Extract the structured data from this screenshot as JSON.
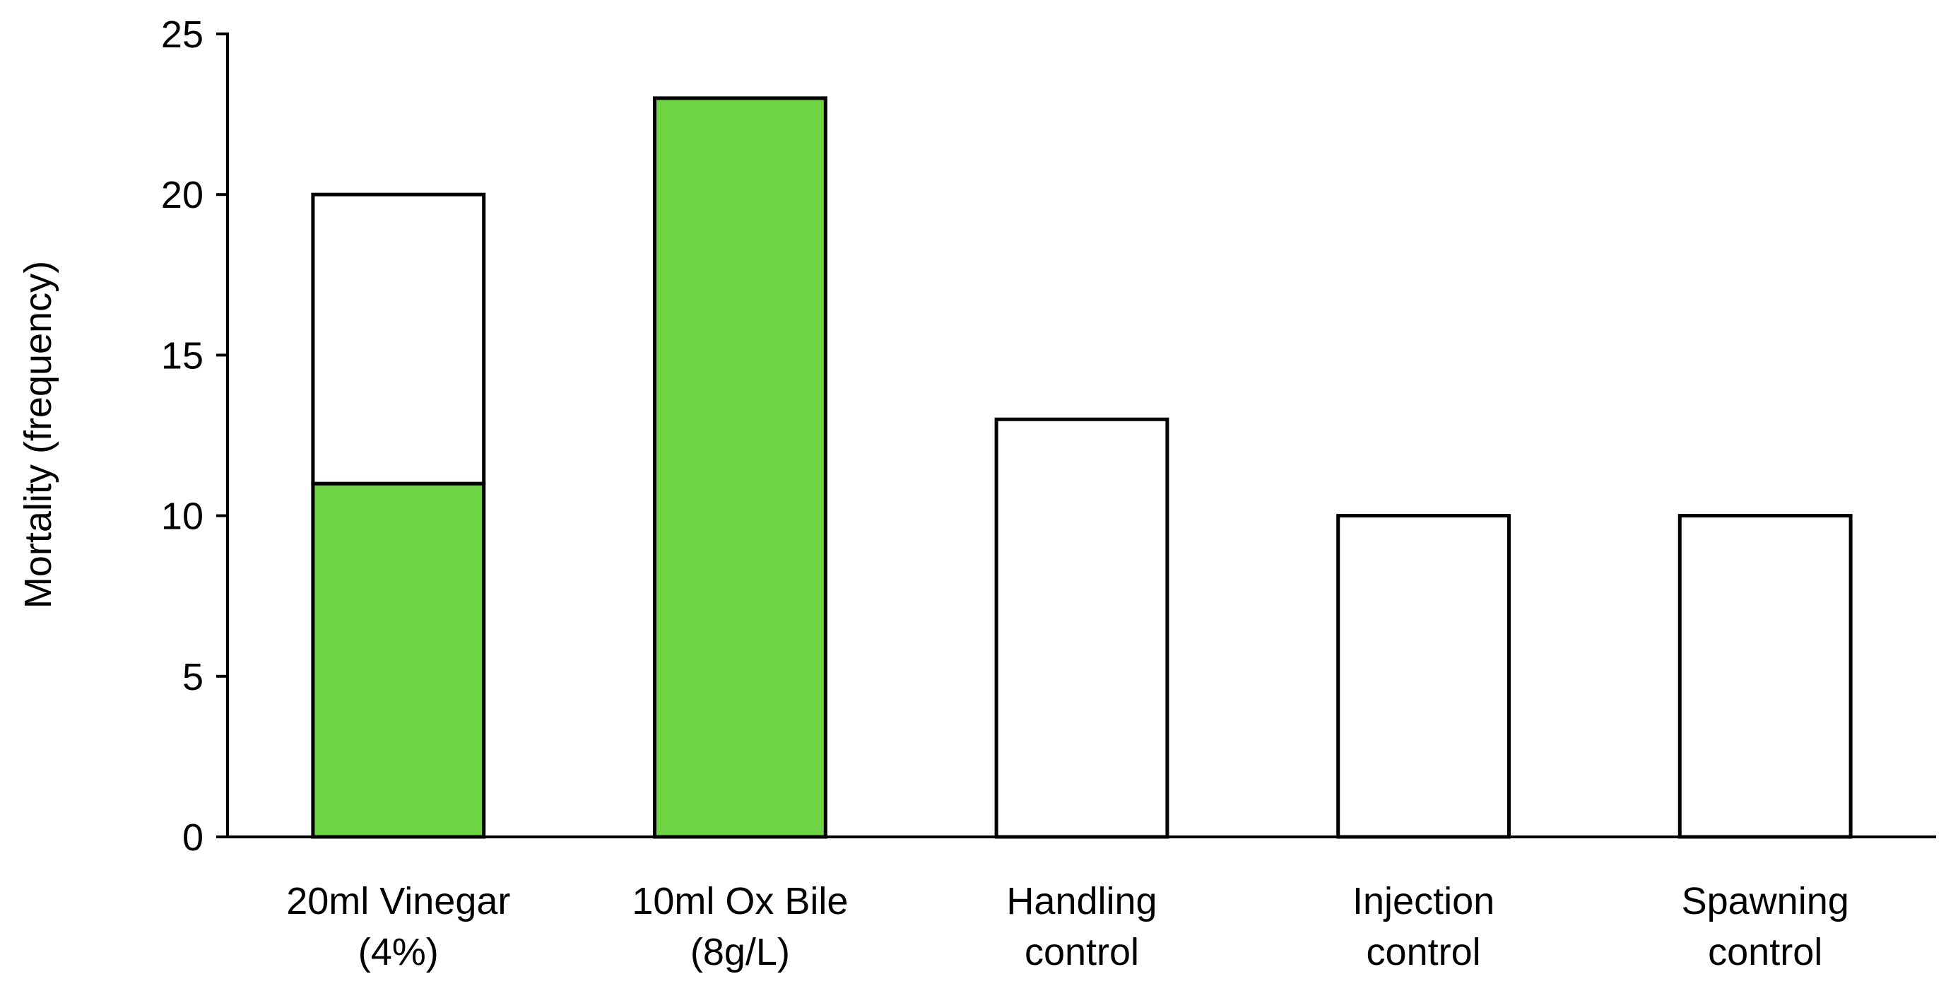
{
  "chart_data": {
    "type": "bar",
    "stacked": true,
    "title": "",
    "xlabel": "",
    "ylabel": "Mortality (frequency)",
    "ylim": [
      0,
      25
    ],
    "yticks": [
      0,
      5,
      10,
      15,
      20,
      25
    ],
    "grid": false,
    "legend": "none",
    "categories": [
      [
        "20ml Vinegar",
        "(4%)"
      ],
      [
        "10ml Ox Bile",
        "(8g/L)"
      ],
      [
        "Handling",
        "control"
      ],
      [
        "Injection",
        "control"
      ],
      [
        "Spawning",
        "control"
      ]
    ],
    "series": [
      {
        "color": "#6fd444",
        "values": [
          11,
          23,
          0,
          0,
          0
        ]
      },
      {
        "color": "#ffffff",
        "values": [
          9,
          0,
          13,
          10,
          10
        ]
      }
    ]
  }
}
